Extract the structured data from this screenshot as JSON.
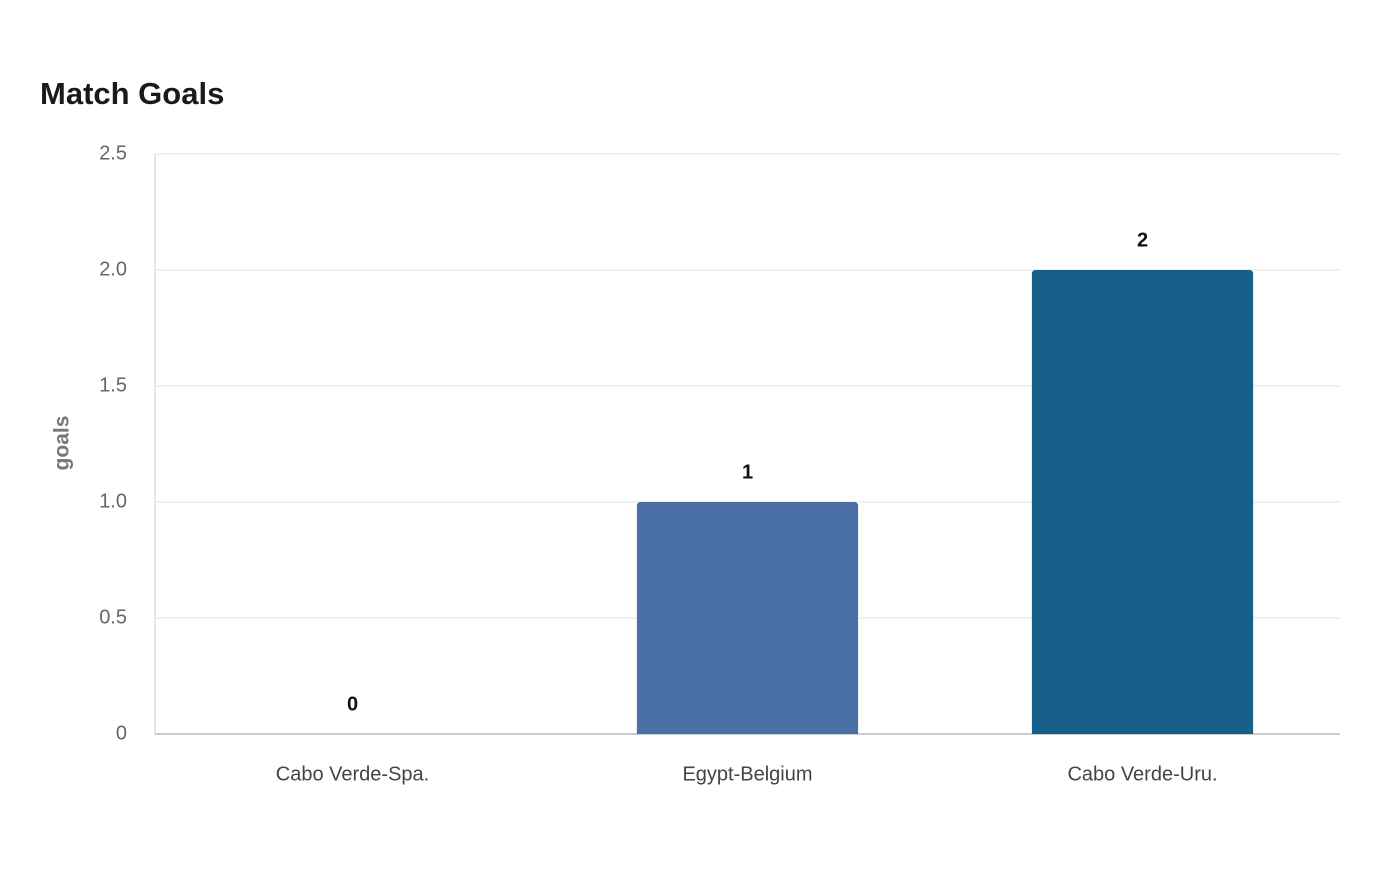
{
  "chart_data": {
    "type": "bar",
    "title": "Match Goals",
    "y_label": "goals",
    "categories": [
      "Cabo Verde-Spa.",
      "Egypt-Belgium",
      "Cabo Verde-Uru."
    ],
    "values": [
      0,
      1,
      2
    ],
    "colors": [
      "#6a8cc0",
      "#4a6fa5",
      "#17608a"
    ],
    "ylim": [
      0,
      2.5
    ],
    "yticks": [
      0,
      0.5,
      {
        "value": 1,
        "label": "1.0"
      },
      1.5,
      {
        "value": 2,
        "label": "2.0"
      },
      2.5
    ],
    "grid": true
  }
}
